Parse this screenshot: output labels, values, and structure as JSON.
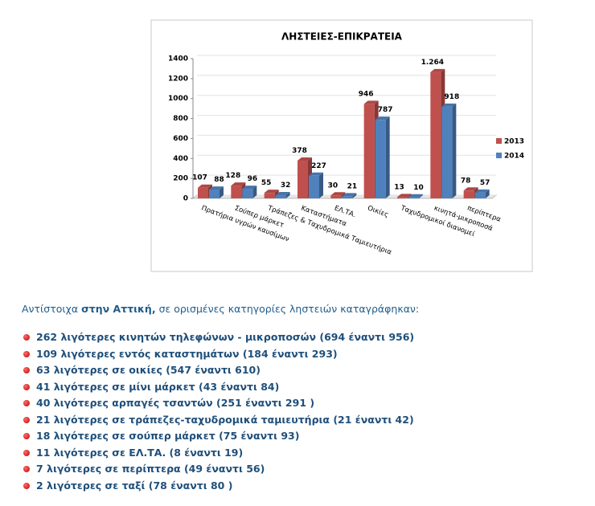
{
  "chart_data": {
    "type": "bar",
    "title": "ΛΗΣΤΕΙΕΣ-ΕΠΙΚΡΑΤΕΙΑ",
    "categories": [
      "Πρατήρια υγρών καυσίμων",
      "Σούπερ μάρκετ",
      "Τράπεζες & Ταχυδρομικά Ταμιευτήρια",
      "Καταστήματα",
      "ΕΛ.ΤΑ.",
      "Οικίες",
      "Ταχυδρομικοί διανομεί",
      "κινητά-μικροποσά",
      "περίπτερα"
    ],
    "series": [
      {
        "name": "2013",
        "color": "#c0504d",
        "values": [
          107,
          128,
          55,
          378,
          30,
          946,
          13,
          1264,
          78
        ],
        "value_labels": [
          "107",
          "128",
          "55",
          "378",
          "30",
          "946",
          "13",
          "1.264",
          "78"
        ]
      },
      {
        "name": "2014",
        "color": "#4f81bd",
        "values": [
          88,
          96,
          32,
          227,
          21,
          787,
          10,
          918,
          57
        ]
      }
    ],
    "ylim": [
      0,
      1400
    ],
    "yticks": [
      0,
      200,
      400,
      600,
      800,
      1000,
      1200,
      1400
    ],
    "grid": true,
    "legend": "right"
  },
  "intro": [
    "Αντίστοιχα",
    "στην Αττική,",
    "σε ορισμένες κατηγορίες ληστειών καταγράφηκαν:"
  ],
  "items": [
    "262 λιγότερες κινητών τηλεφώνων - μικροποσών (694 έναντι 956)",
    "109 λιγότερες εντός καταστημάτων (184 έναντι 293)",
    "63 λιγότερες σε οικίες (547 έναντι 610)",
    "41 λιγότερες σε μίνι μάρκετ (43 έναντι 84)",
    "40 λιγότερες αρπαγές τσαντών (251 έναντι 291 )",
    "21 λιγότερες σε τράπεζες-ταχυδρομικά ταμιευτήρια (21 έναντι 42)",
    "18 λιγότερες σε σούπερ μάρκετ (75 έναντι 93)",
    "11 λιγότερες σε ΕΛ.ΤΑ. (8 έναντι 19)",
    "7 λιγότερες σε περίπτερα (49 έναντι 56)",
    "2 λιγότερες σε ταξί (78 έναντι 80 )"
  ]
}
